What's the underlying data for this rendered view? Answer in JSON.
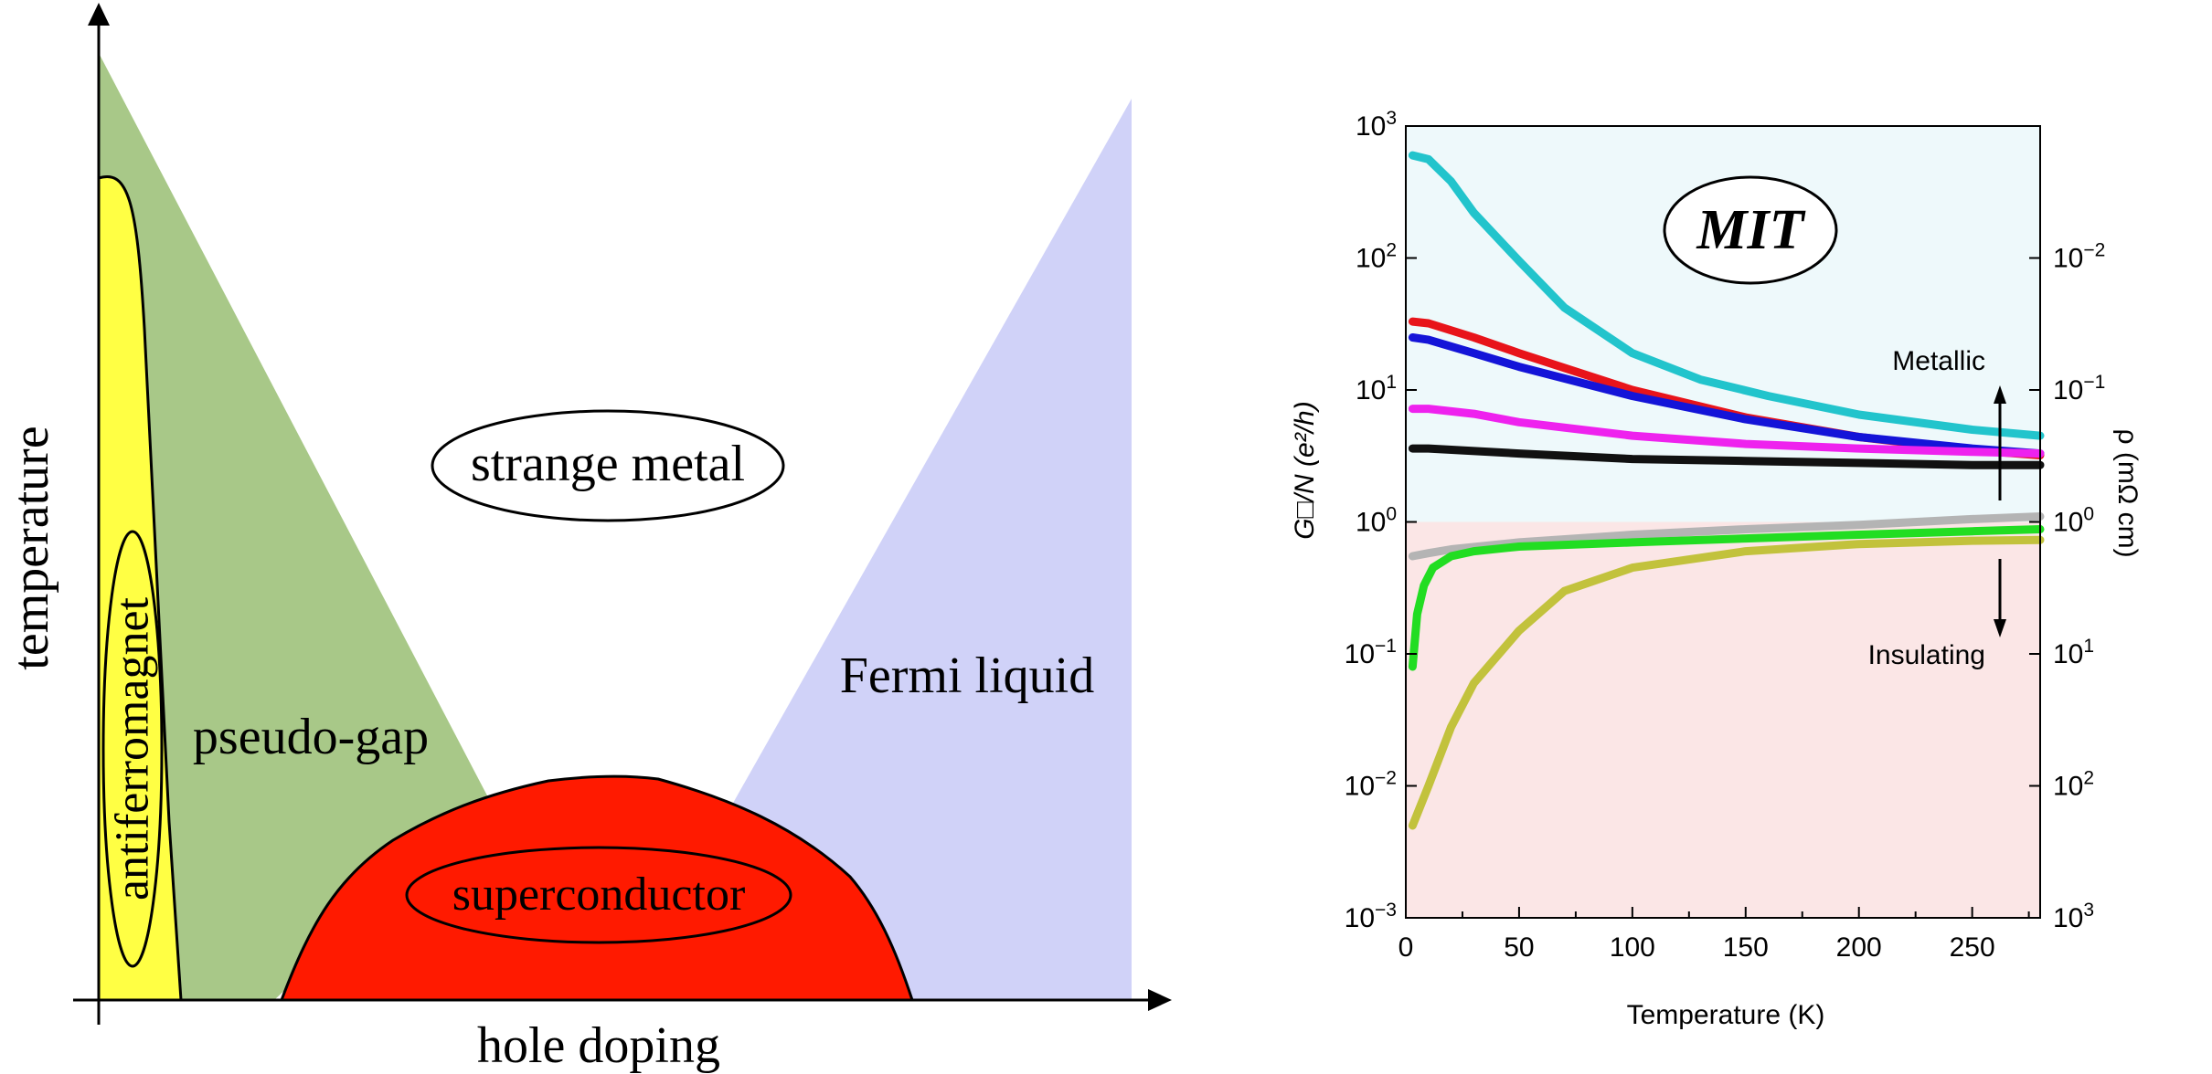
{
  "chart_data": [
    {
      "type": "phase-diagram",
      "title": "",
      "xlabel": "hole doping",
      "ylabel": "temperature",
      "regions": [
        {
          "name": "antiferromagnet",
          "color": "#ffff44"
        },
        {
          "name": "pseudo-gap",
          "color": "#a8c888"
        },
        {
          "name": "strange metal",
          "color": "#ffffff"
        },
        {
          "name": "Fermi liquid",
          "color": "#d0d2f8"
        },
        {
          "name": "superconductor",
          "color": "#ff1a00"
        }
      ],
      "labels": {
        "strange_metal": "strange metal",
        "fermi_liquid": "Fermi liquid",
        "pseudo_gap": "pseudo-gap",
        "antiferromagnet": "antiferromagnet",
        "superconductor": "superconductor"
      }
    },
    {
      "type": "line",
      "title": "MIT",
      "xlabel": "Temperature (K)",
      "ylabel_left": "G□/N (e²/h)",
      "ylabel_right": "ρ (mΩ cm)",
      "xlim": [
        0,
        280
      ],
      "ylim_log10": [
        -3,
        3
      ],
      "x_ticks": [
        "0",
        "50",
        "100",
        "150",
        "200",
        "250"
      ],
      "x_tick_values": [
        0,
        50,
        100,
        150,
        200,
        250
      ],
      "y_ticks": [
        {
          "base": "10",
          "exp": "3",
          "log": 3
        },
        {
          "base": "10",
          "exp": "2",
          "log": 2
        },
        {
          "base": "10",
          "exp": "1",
          "log": 1
        },
        {
          "base": "10",
          "exp": "0",
          "log": 0
        },
        {
          "base": "10",
          "exp": "−1",
          "log": -1
        },
        {
          "base": "10",
          "exp": "−2",
          "log": -2
        },
        {
          "base": "10",
          "exp": "−3",
          "log": -3
        }
      ],
      "right_ticks": [
        {
          "base": "10",
          "exp": "−2",
          "log": 2
        },
        {
          "base": "10",
          "exp": "−1",
          "log": 1
        },
        {
          "base": "10",
          "exp": "0",
          "log": 0
        },
        {
          "base": "10",
          "exp": "1",
          "log": -1
        },
        {
          "base": "10",
          "exp": "2",
          "log": -2
        },
        {
          "base": "10",
          "exp": "3",
          "log": -3
        }
      ],
      "annotations": {
        "metallic": "Metallic",
        "insulating": "Insulating"
      },
      "regions": {
        "metallic_color": "#eef9fb",
        "insulating_color": "#fbe6e6"
      },
      "series": [
        {
          "name": "cyan",
          "color": "#22c4cc",
          "x": [
            3,
            10,
            20,
            30,
            50,
            70,
            100,
            130,
            160,
            200,
            250,
            280
          ],
          "y": [
            600,
            560,
            380,
            220,
            95,
            42,
            19,
            12,
            9,
            6.5,
            5,
            4.5
          ]
        },
        {
          "name": "red",
          "color": "#e8141a",
          "x": [
            3,
            10,
            30,
            50,
            100,
            150,
            200,
            250,
            280
          ],
          "y": [
            33,
            32,
            25,
            19,
            10,
            6.2,
            4.4,
            3.5,
            3.2
          ]
        },
        {
          "name": "blue",
          "color": "#1414d8",
          "x": [
            3,
            10,
            30,
            50,
            100,
            150,
            200,
            250,
            280
          ],
          "y": [
            25,
            24,
            19,
            15,
            9,
            6,
            4.4,
            3.6,
            3.3
          ]
        },
        {
          "name": "magenta",
          "color": "#ee22ee",
          "x": [
            3,
            10,
            30,
            50,
            100,
            150,
            200,
            250,
            280
          ],
          "y": [
            7.2,
            7.2,
            6.6,
            5.7,
            4.5,
            3.9,
            3.6,
            3.4,
            3.3
          ]
        },
        {
          "name": "black",
          "color": "#111111",
          "x": [
            3,
            10,
            50,
            100,
            150,
            200,
            250,
            280
          ],
          "y": [
            3.6,
            3.6,
            3.3,
            3.0,
            2.9,
            2.8,
            2.7,
            2.7
          ]
        },
        {
          "name": "gray",
          "color": "#b4b4b4",
          "x": [
            3,
            10,
            20,
            50,
            100,
            150,
            200,
            250,
            280
          ],
          "y": [
            0.55,
            0.58,
            0.62,
            0.7,
            0.8,
            0.88,
            0.95,
            1.05,
            1.1
          ]
        },
        {
          "name": "green",
          "color": "#22dd22",
          "x": [
            3,
            5,
            8,
            12,
            20,
            30,
            50,
            100,
            150,
            200,
            250,
            280
          ],
          "y": [
            0.08,
            0.2,
            0.33,
            0.45,
            0.55,
            0.6,
            0.65,
            0.7,
            0.75,
            0.8,
            0.85,
            0.88
          ]
        },
        {
          "name": "olive",
          "color": "#c2c23c",
          "x": [
            3,
            10,
            20,
            30,
            50,
            70,
            100,
            150,
            200,
            250,
            280
          ],
          "y": [
            0.005,
            0.01,
            0.028,
            0.06,
            0.15,
            0.3,
            0.45,
            0.6,
            0.68,
            0.72,
            0.73
          ]
        }
      ]
    }
  ]
}
